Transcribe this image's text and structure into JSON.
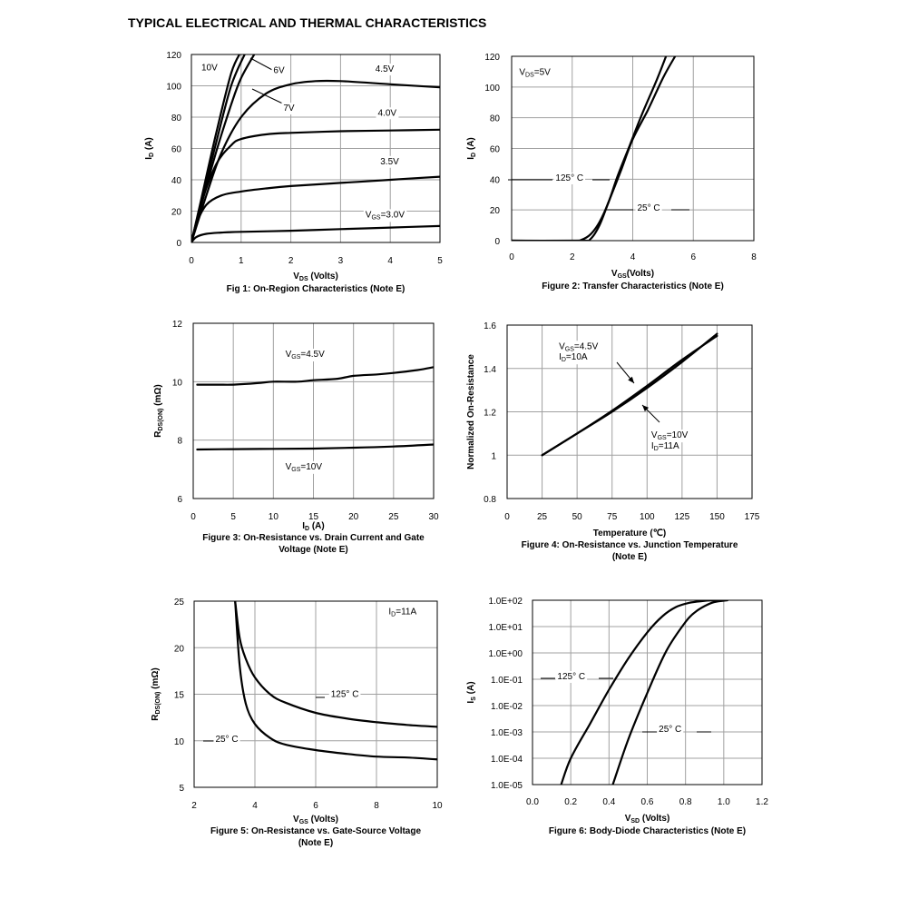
{
  "page_title": "TYPICAL ELECTRICAL AND THERMAL CHARACTERISTICS",
  "chart_data": [
    {
      "id": "fig1",
      "type": "line",
      "caption": "Fig 1: On-Region Characteristics (Note E)",
      "xlabel_main": "V",
      "xlabel_sub": "DS",
      "xlabel_tail": " (Volts)",
      "ylabel_main": "I",
      "ylabel_sub": "D",
      "ylabel_tail": " (A)",
      "xlim": [
        0,
        5
      ],
      "ylim": [
        0,
        120
      ],
      "xticks": [
        0,
        1,
        2,
        3,
        4,
        5
      ],
      "yticks": [
        0,
        20,
        40,
        60,
        80,
        100,
        120
      ],
      "xtick_labels": [
        "0",
        "1",
        "2",
        "3",
        "4",
        "5"
      ],
      "ytick_labels": [
        "0",
        "20",
        "40",
        "60",
        "80",
        "100",
        "120"
      ],
      "series": [
        {
          "name": "10V",
          "x": [
            0,
            0.2,
            0.5,
            0.8,
            1.0
          ],
          "y": [
            0,
            28,
            70,
            108,
            122
          ]
        },
        {
          "name": "6V",
          "x": [
            0,
            0.2,
            0.5,
            0.8,
            1.1
          ],
          "y": [
            0,
            26,
            64,
            100,
            122
          ]
        },
        {
          "name": "7V",
          "x": [
            0,
            0.2,
            0.5,
            0.8,
            1.0,
            1.3
          ],
          "y": [
            0,
            24,
            58,
            88,
            105,
            122
          ]
        },
        {
          "name": "4.5V",
          "x": [
            0,
            0.3,
            0.6,
            1.0,
            1.5,
            2.0,
            2.5,
            3.0,
            4.0,
            5.0
          ],
          "y": [
            0,
            30,
            57,
            80,
            95,
            101,
            103,
            103,
            101,
            99
          ]
        },
        {
          "name": "4.0V",
          "x": [
            0,
            0.2,
            0.5,
            0.8,
            1.0,
            1.5,
            2.0,
            3.0,
            4.0,
            5.0
          ],
          "y": [
            0,
            25,
            50,
            62,
            66,
            69,
            70,
            71,
            71.5,
            72
          ]
        },
        {
          "name": "3.5V",
          "x": [
            0,
            0.1,
            0.3,
            0.6,
            1.0,
            1.5,
            2.0,
            3.0,
            4.0,
            5.0
          ],
          "y": [
            0,
            12,
            24,
            30,
            32.5,
            34.5,
            36,
            38,
            40,
            42
          ]
        },
        {
          "name": "VGS=3.0V",
          "x": [
            0,
            0.1,
            0.3,
            0.6,
            1.0,
            2.0,
            3.0,
            4.0,
            5.0
          ],
          "y": [
            0,
            3.5,
            5.5,
            6.3,
            6.8,
            7.5,
            8.5,
            9.5,
            10.5
          ]
        }
      ],
      "annotations": [
        {
          "text": "10V",
          "x": 0.2,
          "y": 110
        },
        {
          "text": "6V",
          "x": 1.65,
          "y": 108
        },
        {
          "text": "7V",
          "x": 1.85,
          "y": 84
        },
        {
          "text": "4.5V",
          "x": 3.7,
          "y": 109
        },
        {
          "text": "4.0V",
          "x": 3.75,
          "y": 81
        },
        {
          "text": "3.5V",
          "x": 3.8,
          "y": 50
        },
        {
          "main": "V",
          "sub": "GS",
          "tail": "=3.0V",
          "x": 3.5,
          "y": 16
        }
      ]
    },
    {
      "id": "fig2",
      "type": "line",
      "caption": "Figure 2: Transfer Characteristics (Note E)",
      "xlabel_main": "V",
      "xlabel_sub": "GS",
      "xlabel_tail": "(Volts)",
      "ylabel_main": "I",
      "ylabel_sub": "D",
      "ylabel_tail": " (A)",
      "xlim": [
        0,
        8
      ],
      "ylim": [
        0,
        120
      ],
      "xticks": [
        0,
        2,
        4,
        6,
        8
      ],
      "yticks": [
        0,
        20,
        40,
        60,
        80,
        100,
        120
      ],
      "xtick_labels": [
        "0",
        "2",
        "4",
        "6",
        "8"
      ],
      "ytick_labels": [
        "0",
        "20",
        "40",
        "60",
        "80",
        "100",
        "120"
      ],
      "series": [
        {
          "name": "125° C",
          "x": [
            0,
            2.0,
            2.3,
            2.6,
            2.9,
            3.2,
            3.5,
            3.9,
            4.3,
            4.8,
            5.1
          ],
          "y": [
            0,
            0,
            0.5,
            4,
            12,
            25,
            42,
            62,
            82,
            105,
            120
          ]
        },
        {
          "name": "25° C",
          "x": [
            0,
            2.3,
            2.6,
            2.9,
            3.2,
            3.6,
            4.0,
            4.5,
            5.0,
            5.4
          ],
          "y": [
            0,
            0,
            1,
            10,
            25,
            45,
            66,
            85,
            106,
            120
          ]
        }
      ],
      "annotations": [
        {
          "main": "V",
          "sub": "DS",
          "tail": "=5V",
          "x": 0.25,
          "y": 108
        },
        {
          "text": "125° C",
          "x": 1.45,
          "y": 39
        },
        {
          "text": "25° C",
          "x": 4.15,
          "y": 19.5
        }
      ]
    },
    {
      "id": "fig3",
      "type": "line",
      "caption": "Figure 3: On-Resistance vs. Drain Current and Gate Voltage (Note E)",
      "caption_line1": "Figure 3: On-Resistance vs. Drain Current and Gate",
      "caption_line2": "Voltage (Note E)",
      "xlabel_main": "I",
      "xlabel_sub": "D",
      "xlabel_tail": " (A)",
      "ylabel_main": "R",
      "ylabel_sub": "DS(ON)",
      "ylabel_tail": " (mΩ)",
      "xlim": [
        0,
        30
      ],
      "ylim": [
        6,
        12
      ],
      "xticks": [
        0,
        5,
        10,
        15,
        20,
        25,
        30
      ],
      "yticks": [
        6,
        8,
        10,
        12
      ],
      "xtick_labels": [
        "0",
        "5",
        "10",
        "15",
        "20",
        "25",
        "30"
      ],
      "ytick_labels": [
        "6",
        "8",
        "10",
        "12"
      ],
      "series": [
        {
          "name": "VGS=4.5V",
          "x": [
            0.5,
            3,
            5,
            8,
            10,
            13,
            15,
            18,
            20,
            23,
            25,
            28,
            30
          ],
          "y": [
            9.9,
            9.9,
            9.9,
            9.95,
            10.0,
            10.0,
            10.05,
            10.1,
            10.2,
            10.25,
            10.3,
            10.4,
            10.5
          ]
        },
        {
          "name": "VGS=10V",
          "x": [
            0.5,
            5,
            10,
            15,
            20,
            25,
            30
          ],
          "y": [
            7.68,
            7.69,
            7.7,
            7.71,
            7.74,
            7.78,
            7.85
          ]
        }
      ],
      "annotations": [
        {
          "main": "V",
          "sub": "GS",
          "tail": "=4.5V",
          "x": 11.5,
          "y": 10.85
        },
        {
          "main": "V",
          "sub": "GS",
          "tail": "=10V",
          "x": 11.5,
          "y": 7.0
        }
      ]
    },
    {
      "id": "fig4",
      "type": "line",
      "caption": "Figure 4: On-Resistance vs. Junction Temperature (Note E)",
      "caption_line1": "Figure 4: On-Resistance vs. Junction Temperature",
      "caption_line2": "(Note E)",
      "xlabel_main": "Temperature (",
      "xlabel_sub": "",
      "xlabel_tail": "℃)",
      "ylabel_main": "Normalized On-Resistance",
      "ylabel_sub": "",
      "ylabel_tail": "",
      "xlim": [
        0,
        175
      ],
      "ylim": [
        0.8,
        1.6
      ],
      "xticks": [
        0,
        25,
        50,
        75,
        100,
        125,
        150,
        175
      ],
      "yticks": [
        0.8,
        1.0,
        1.2,
        1.4,
        1.6
      ],
      "xtick_labels": [
        "0",
        "25",
        "50",
        "75",
        "100",
        "125",
        "150",
        "175"
      ],
      "ytick_labels": [
        "0.8",
        "1",
        "1.2",
        "1.4",
        "1.6"
      ],
      "series": [
        {
          "name": "VGS=4.5V ID=10A",
          "x": [
            25,
            50,
            75,
            100,
            125,
            150
          ],
          "y": [
            1.0,
            1.1,
            1.2,
            1.31,
            1.43,
            1.56
          ]
        },
        {
          "name": "VGS=10V ID=11A",
          "x": [
            25,
            50,
            75,
            100,
            125,
            150
          ],
          "y": [
            1.0,
            1.1,
            1.205,
            1.32,
            1.44,
            1.55
          ]
        }
      ],
      "annotations": [
        {
          "main": "V",
          "sub": "GS",
          "tail": "=4.5V",
          "x": 37,
          "y": 1.49
        },
        {
          "main": "I",
          "sub": "D",
          "tail": "=10A",
          "x": 37,
          "y": 1.44
        },
        {
          "main": "V",
          "sub": "GS",
          "tail": "=10V",
          "x": 103,
          "y": 1.08
        },
        {
          "main": "I",
          "sub": "D",
          "tail": "=11A",
          "x": 103,
          "y": 1.03
        }
      ]
    },
    {
      "id": "fig5",
      "type": "line",
      "caption": "Figure 5: On-Resistance vs. Gate-Source Voltage (Note E)",
      "caption_line1": "Figure 5: On-Resistance vs. Gate-Source Voltage",
      "caption_line2": "(Note E)",
      "xlabel_main": "V",
      "xlabel_sub": "GS",
      "xlabel_tail": " (Volts)",
      "ylabel_main": "R",
      "ylabel_sub": "DS(ON)",
      "ylabel_tail": " (mΩ)",
      "xlim": [
        2,
        10
      ],
      "ylim": [
        5,
        25
      ],
      "xticks": [
        2,
        4,
        6,
        8,
        10
      ],
      "yticks": [
        5,
        10,
        15,
        20,
        25
      ],
      "xtick_labels": [
        "2",
        "4",
        "6",
        "8",
        "10"
      ],
      "ytick_labels": [
        "5",
        "10",
        "15",
        "20",
        "25"
      ],
      "series": [
        {
          "name": "125° C",
          "x": [
            3.35,
            3.5,
            3.7,
            4.0,
            4.5,
            5.0,
            6.0,
            7.0,
            8.0,
            9.0,
            10.0
          ],
          "y": [
            25,
            21,
            18.8,
            16.8,
            15.0,
            14.1,
            13.0,
            12.4,
            12.0,
            11.7,
            11.5
          ]
        },
        {
          "name": "25° C",
          "x": [
            3.35,
            3.5,
            3.7,
            4.0,
            4.5,
            5.0,
            6.0,
            7.0,
            8.0,
            9.0,
            10.0
          ],
          "y": [
            25,
            18.0,
            14.0,
            11.8,
            10.3,
            9.6,
            9.0,
            8.6,
            8.3,
            8.2,
            8.0
          ]
        }
      ],
      "annotations": [
        {
          "main": "I",
          "sub": "D",
          "tail": "=11A",
          "x": 8.4,
          "y": 23.6
        },
        {
          "text": "125° C",
          "x": 6.5,
          "y": 14.7
        },
        {
          "text": "25° C",
          "x": 2.7,
          "y": 9.9
        }
      ]
    },
    {
      "id": "fig6",
      "type": "line",
      "caption": "Figure 6: Body-Diode Characteristics (Note E)",
      "xlabel_main": "V",
      "xlabel_sub": "SD",
      "xlabel_tail": " (Volts)",
      "ylabel_main": "I",
      "ylabel_sub": "S",
      "ylabel_tail": " (A)",
      "log_y": true,
      "xlim": [
        0,
        1.2
      ],
      "ylim": [
        1e-05,
        100
      ],
      "xticks": [
        0,
        0.2,
        0.4,
        0.6,
        0.8,
        1.0,
        1.2
      ],
      "yticks": [
        1e-05,
        0.0001,
        0.001,
        0.01,
        0.1,
        1,
        10,
        100
      ],
      "xtick_labels": [
        "0.0",
        "0.2",
        "0.4",
        "0.6",
        "0.8",
        "1.0",
        "1.2"
      ],
      "ytick_labels": [
        "1.0E-05",
        "1.0E-04",
        "1.0E-03",
        "1.0E-02",
        "1.0E-01",
        "1.0E+00",
        "1.0E+01",
        "1.0E+02"
      ],
      "series": [
        {
          "name": "125° C",
          "x": [
            0.15,
            0.2,
            0.3,
            0.4,
            0.5,
            0.6,
            0.68,
            0.75,
            0.82,
            0.9,
            0.97
          ],
          "y": [
            1e-05,
            0.0001,
            0.002,
            0.04,
            0.6,
            6,
            25,
            55,
            80,
            95,
            100
          ]
        },
        {
          "name": "25° C",
          "x": [
            0.42,
            0.5,
            0.6,
            0.7,
            0.8,
            0.85,
            0.9,
            0.95,
            1.02
          ],
          "y": [
            1e-05,
            0.0005,
            0.03,
            1.2,
            15,
            35,
            60,
            85,
            100
          ]
        }
      ],
      "annotations": [
        {
          "text": "125° C",
          "x": 0.13,
          "y": 0.1
        },
        {
          "text": "25° C",
          "x": 0.66,
          "y": 0.001
        }
      ]
    }
  ]
}
